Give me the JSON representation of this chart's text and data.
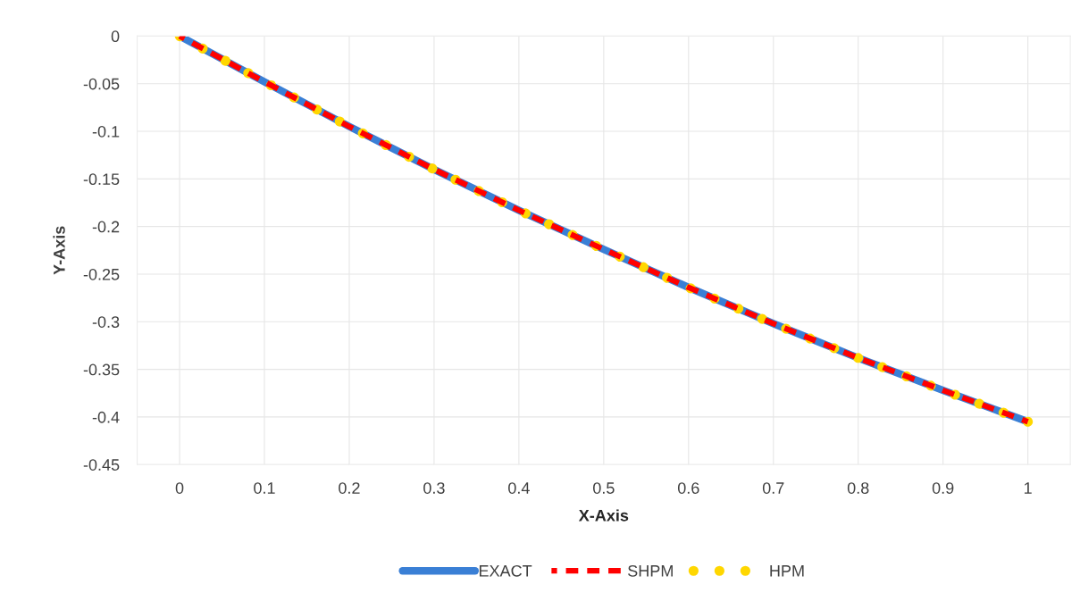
{
  "chart_data": {
    "type": "line",
    "xlabel": "X-Axis",
    "ylabel": "Y-Axis",
    "categories": [
      "0",
      "0.1",
      "0.2",
      "0.3",
      "0.4",
      "0.5",
      "0.6",
      "0.7",
      "0.8",
      "0.9",
      "1"
    ],
    "series": [
      {
        "name": "EXACT",
        "color": "#3a7fd5",
        "line_style": "solid",
        "values": [
          0,
          -0.048,
          -0.095,
          -0.14,
          -0.183,
          -0.224,
          -0.264,
          -0.302,
          -0.338,
          -0.372,
          -0.405
        ]
      },
      {
        "name": "SHPM",
        "color": "#ff0000",
        "line_style": "dashed",
        "values": [
          0,
          -0.048,
          -0.095,
          -0.14,
          -0.183,
          -0.224,
          -0.264,
          -0.302,
          -0.338,
          -0.372,
          -0.405
        ]
      },
      {
        "name": "HPM",
        "color": "#ffd700",
        "line_style": "dotted",
        "values": [
          0,
          -0.048,
          -0.095,
          -0.14,
          -0.183,
          -0.224,
          -0.264,
          -0.302,
          -0.338,
          -0.372,
          -0.405
        ]
      }
    ],
    "ylim": [
      -0.45,
      0
    ],
    "yticks": [
      0,
      -0.05,
      -0.1,
      -0.15,
      -0.2,
      -0.25,
      -0.3,
      -0.35,
      -0.4,
      -0.45
    ],
    "grid": true,
    "legend": "bottom"
  }
}
